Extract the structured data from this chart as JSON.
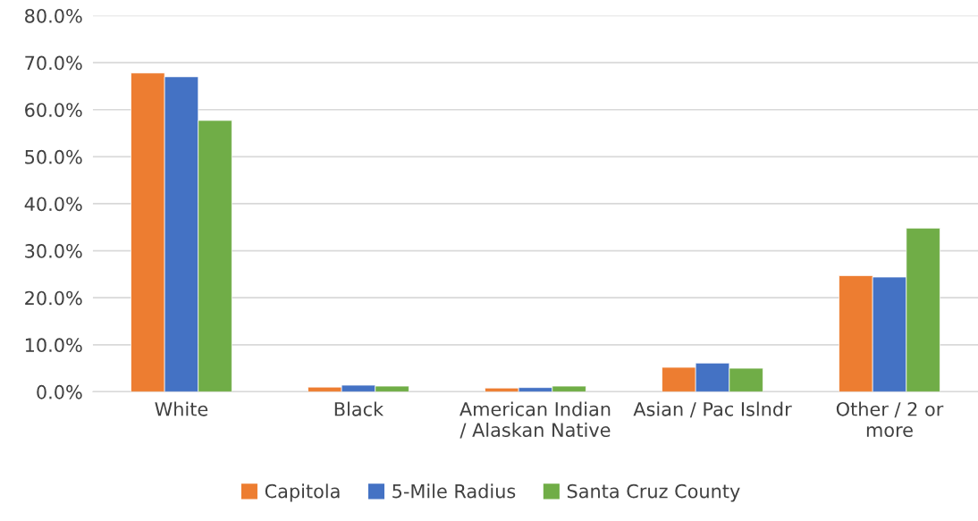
{
  "chart_data": {
    "type": "bar",
    "categories": [
      "White",
      "Black",
      "American Indian\n/ Alaskan Native",
      "Asian / Pac Islndr",
      "Other / 2 or\nmore"
    ],
    "series": [
      {
        "name": "Capitola",
        "color": "#ed7d31",
        "values": [
          67.8,
          1.0,
          0.8,
          5.2,
          24.7
        ]
      },
      {
        "name": "5-Mile Radius",
        "color": "#4472c4",
        "values": [
          67.0,
          1.4,
          0.9,
          6.1,
          24.4
        ]
      },
      {
        "name": "Santa Cruz County",
        "color": "#70ad47",
        "values": [
          57.7,
          1.2,
          1.2,
          5.0,
          34.8
        ]
      }
    ],
    "ylim": [
      0,
      80
    ],
    "yticks": [
      {
        "value": 0,
        "label": "0.0%"
      },
      {
        "value": 10,
        "label": "10.0%"
      },
      {
        "value": 20,
        "label": "20.0%"
      },
      {
        "value": 30,
        "label": "30.0%"
      },
      {
        "value": 40,
        "label": "40.0%"
      },
      {
        "value": 50,
        "label": "50.0%"
      },
      {
        "value": 60,
        "label": "60.0%"
      },
      {
        "value": 70,
        "label": "70.0%"
      },
      {
        "value": 80,
        "label": "80.0%"
      }
    ],
    "grid": "y",
    "legend": "bottom"
  }
}
